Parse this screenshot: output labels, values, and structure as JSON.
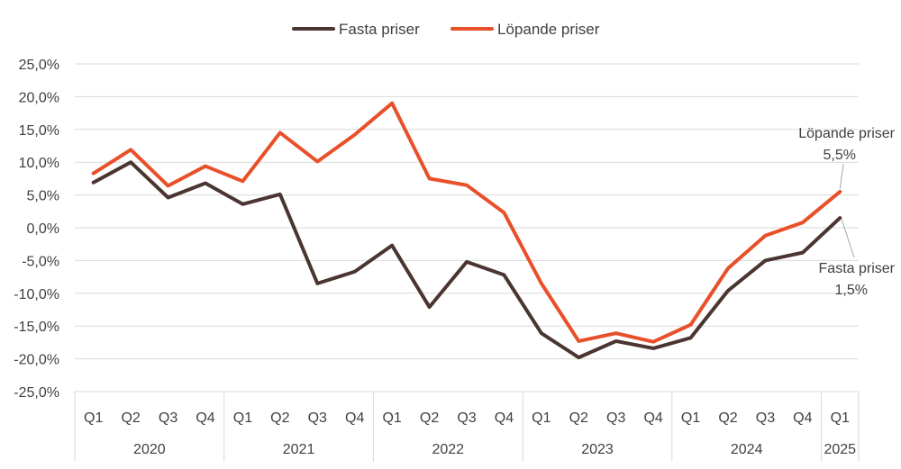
{
  "chart_data": {
    "type": "line",
    "title": "",
    "xlabel": "",
    "ylabel": "",
    "ylim": [
      -25,
      25
    ],
    "y_step": 5,
    "y_tick_labels": [
      "25,0%",
      "20,0%",
      "15,0%",
      "10,0%",
      "5,0%",
      "0,0%",
      "-5,0%",
      "-10,0%",
      "-15,0%",
      "-20,0%",
      "-25,0%"
    ],
    "grid": "horizontal",
    "legend_position": "top-center",
    "categories": [
      "Q1",
      "Q2",
      "Q3",
      "Q4",
      "Q1",
      "Q2",
      "Q3",
      "Q4",
      "Q1",
      "Q2",
      "Q3",
      "Q4",
      "Q1",
      "Q2",
      "Q3",
      "Q4",
      "Q1",
      "Q2",
      "Q3",
      "Q4",
      "Q1"
    ],
    "year_groups": [
      {
        "label": "2020",
        "count": 4
      },
      {
        "label": "2021",
        "count": 4
      },
      {
        "label": "2022",
        "count": 4
      },
      {
        "label": "2023",
        "count": 4
      },
      {
        "label": "2024",
        "count": 4
      },
      {
        "label": "2025",
        "count": 1
      }
    ],
    "series": [
      {
        "name": "Fasta priser",
        "color": "#4a3530",
        "values": [
          6.9,
          10.0,
          4.6,
          6.8,
          3.6,
          5.1,
          -8.5,
          -6.7,
          -2.7,
          -12.1,
          -5.2,
          -7.2,
          -16.1,
          -19.8,
          -17.3,
          -18.4,
          -16.8,
          -9.6,
          -5.0,
          -3.8,
          1.5
        ]
      },
      {
        "name": "Löpande priser",
        "color": "#e8502a",
        "values": [
          8.3,
          11.9,
          6.4,
          9.4,
          7.1,
          14.5,
          10.1,
          14.2,
          19.0,
          7.5,
          6.5,
          2.3,
          -8.5,
          -17.3,
          -16.1,
          -17.4,
          -14.8,
          -6.2,
          -1.2,
          0.8,
          5.5
        ]
      }
    ],
    "annotations": [
      {
        "series": 1,
        "line1": "Löpande priser",
        "line2": "5,5%"
      },
      {
        "series": 0,
        "line1": "Fasta priser",
        "line2": "1,5%"
      }
    ]
  }
}
